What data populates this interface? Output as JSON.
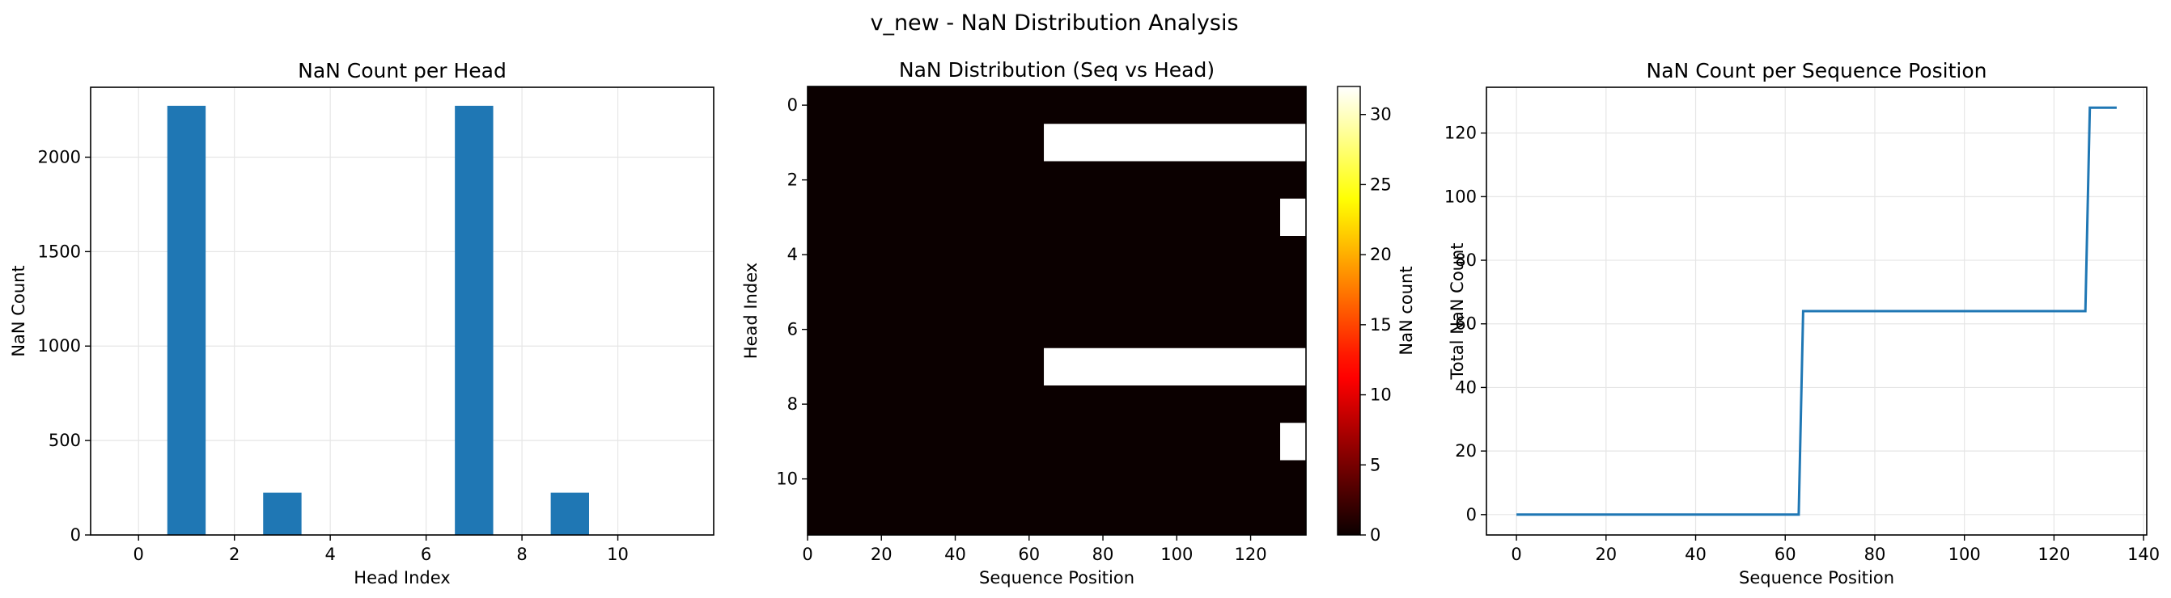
{
  "figure_title": "v_new - NaN Distribution Analysis",
  "colors": {
    "bar": "#1f77b4",
    "line": "#1f77b4",
    "grid": "#e6e6e6",
    "axis": "#000000",
    "colormap": "hot"
  },
  "chart_data": [
    {
      "type": "bar",
      "title": "NaN Count per Head",
      "xlabel": "Head Index",
      "ylabel": "NaN Count",
      "categories": [
        0,
        1,
        2,
        3,
        4,
        5,
        6,
        7,
        8,
        9,
        10,
        11
      ],
      "values": [
        0,
        2272,
        0,
        224,
        0,
        0,
        0,
        2272,
        0,
        224,
        0,
        0
      ],
      "xlim": [
        -1,
        12
      ],
      "ylim": [
        0,
        2370
      ],
      "xticks": [
        0,
        2,
        4,
        6,
        8,
        10
      ],
      "yticks": [
        0,
        500,
        1000,
        1500,
        2000
      ],
      "grid": true
    },
    {
      "type": "heatmap",
      "title": "NaN Distribution (Seq vs Head)",
      "xlabel": "Sequence Position",
      "ylabel": "Head Index",
      "colorbar_label": "NaN count",
      "colorbar_range": [
        0,
        32
      ],
      "colorbar_ticks": [
        0,
        5,
        10,
        15,
        20,
        25,
        30
      ],
      "xlim": [
        0,
        135
      ],
      "ylim": [
        11.5,
        -0.5
      ],
      "xticks": [
        0,
        20,
        40,
        60,
        80,
        100,
        120
      ],
      "yticks": [
        0,
        2,
        4,
        6,
        8,
        10
      ],
      "default_value": 0,
      "cells": [
        {
          "head": 1,
          "seq_start": 64,
          "seq_end": 135,
          "value": 32
        },
        {
          "head": 3,
          "seq_start": 128,
          "seq_end": 135,
          "value": 32
        },
        {
          "head": 7,
          "seq_start": 64,
          "seq_end": 135,
          "value": 32
        },
        {
          "head": 9,
          "seq_start": 128,
          "seq_end": 135,
          "value": 32
        }
      ]
    },
    {
      "type": "line",
      "title": "NaN Count per Sequence Position",
      "xlabel": "Sequence Position",
      "ylabel": "Total NaN Count",
      "x": [
        0,
        63,
        64,
        127,
        128,
        134
      ],
      "y": [
        0,
        0,
        64,
        64,
        128,
        128
      ],
      "xlim": [
        -6.7,
        140.7
      ],
      "ylim": [
        -6.4,
        134.4
      ],
      "xticks": [
        0,
        20,
        40,
        60,
        80,
        100,
        120,
        140
      ],
      "yticks": [
        0,
        20,
        40,
        60,
        80,
        100,
        120
      ],
      "grid": true
    }
  ]
}
